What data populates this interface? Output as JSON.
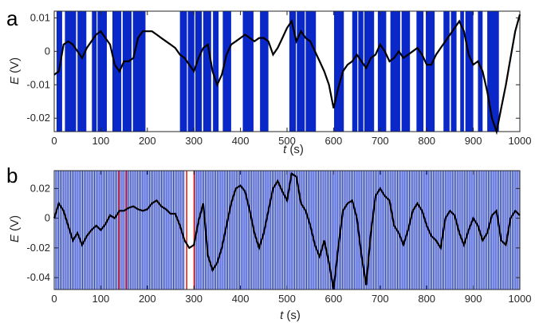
{
  "colors": {
    "band": "#0a28c8",
    "line": "#000000",
    "red": "#e8322a",
    "axis": "#262626"
  },
  "chart_data": [
    {
      "panel_label": "a",
      "type": "line",
      "xlabel_var": "t",
      "xlabel_unit": " (s)",
      "ylabel_var": "E",
      "ylabel_unit": " (V)",
      "xlim": [
        0,
        1000
      ],
      "ylim": [
        -0.024,
        0.012
      ],
      "xticks": [
        0,
        100,
        200,
        300,
        400,
        500,
        600,
        700,
        800,
        900,
        1000
      ],
      "xtick_labels": [
        "0",
        "100",
        "200",
        "300",
        "400",
        "500",
        "600",
        "700",
        "800",
        "900",
        "1000"
      ],
      "yticks": [
        0.01,
        0,
        -0.01,
        -0.02
      ],
      "ytick_labels": [
        "0.01",
        "0",
        "-0.01",
        "-0.02"
      ],
      "bands": [
        [
          5,
          17
        ],
        [
          23,
          47
        ],
        [
          50,
          69
        ],
        [
          81,
          91
        ],
        [
          93,
          113
        ],
        [
          125,
          144
        ],
        [
          147,
          166
        ],
        [
          169,
          196
        ],
        [
          270,
          285
        ],
        [
          287,
          301
        ],
        [
          303,
          317
        ],
        [
          320,
          337
        ],
        [
          341,
          353
        ],
        [
          362,
          380
        ],
        [
          405,
          428
        ],
        [
          442,
          460
        ],
        [
          505,
          519
        ],
        [
          521,
          538
        ],
        [
          540,
          562
        ],
        [
          601,
          622
        ],
        [
          640,
          651
        ],
        [
          653,
          664
        ],
        [
          666,
          687
        ],
        [
          695,
          713
        ],
        [
          722,
          743
        ],
        [
          746,
          764
        ],
        [
          778,
          793
        ],
        [
          798,
          817
        ],
        [
          836,
          849
        ],
        [
          852,
          864
        ],
        [
          872,
          880
        ],
        [
          883,
          900
        ],
        [
          910,
          920
        ],
        [
          930,
          955
        ]
      ],
      "red_bands": [],
      "x": [
        0,
        10,
        20,
        30,
        40,
        50,
        60,
        70,
        80,
        90,
        100,
        110,
        120,
        130,
        140,
        150,
        160,
        170,
        180,
        190,
        200,
        210,
        220,
        230,
        240,
        250,
        260,
        270,
        280,
        290,
        300,
        310,
        320,
        330,
        340,
        350,
        360,
        370,
        380,
        390,
        400,
        410,
        420,
        430,
        440,
        450,
        460,
        470,
        480,
        490,
        500,
        510,
        520,
        530,
        540,
        550,
        560,
        570,
        580,
        590,
        600,
        610,
        620,
        630,
        640,
        650,
        660,
        670,
        680,
        690,
        700,
        710,
        720,
        730,
        740,
        750,
        760,
        770,
        780,
        790,
        800,
        810,
        820,
        830,
        840,
        850,
        860,
        870,
        880,
        890,
        900,
        910,
        920,
        930,
        940,
        950,
        960,
        970,
        980,
        990,
        1000
      ],
      "y": [
        -0.007,
        -0.006,
        0.002,
        0.003,
        0.002,
        0.0,
        -0.002,
        0.001,
        0.003,
        0.005,
        0.006,
        0.004,
        0.002,
        -0.004,
        -0.006,
        -0.003,
        -0.003,
        -0.002,
        0.004,
        0.006,
        0.006,
        0.006,
        0.005,
        0.004,
        0.003,
        0.002,
        0.001,
        -0.001,
        -0.002,
        -0.004,
        -0.006,
        -0.002,
        0.001,
        0.002,
        -0.006,
        -0.01,
        -0.007,
        -0.001,
        0.002,
        0.003,
        0.004,
        0.005,
        0.004,
        0.003,
        0.004,
        0.004,
        0.003,
        -0.001,
        0.001,
        0.004,
        0.007,
        0.009,
        0.003,
        0.006,
        0.004,
        0.003,
        0.0,
        -0.003,
        -0.006,
        -0.01,
        -0.017,
        -0.011,
        -0.006,
        -0.004,
        -0.003,
        -0.001,
        -0.003,
        -0.005,
        -0.002,
        -0.001,
        0.002,
        0.0,
        -0.003,
        -0.002,
        0.0,
        -0.002,
        -0.001,
        0.0,
        0.001,
        -0.001,
        -0.004,
        -0.004,
        -0.001,
        0.001,
        0.003,
        0.005,
        0.007,
        0.009,
        0.006,
        -0.001,
        -0.004,
        -0.003,
        -0.006,
        -0.012,
        -0.02,
        -0.024,
        -0.017,
        -0.01,
        -0.002,
        0.006,
        0.011
      ]
    },
    {
      "panel_label": "b",
      "type": "line",
      "xlabel_var": "t",
      "xlabel_unit": " (s)",
      "ylabel_var": "E",
      "ylabel_unit": " (V)",
      "xlim": [
        0,
        1000
      ],
      "ylim": [
        -0.048,
        0.032
      ],
      "xticks": [
        0,
        100,
        200,
        300,
        400,
        500,
        600,
        700,
        800,
        900,
        1000
      ],
      "xtick_labels": [
        "0",
        "100",
        "200",
        "300",
        "400",
        "500",
        "600",
        "700",
        "800",
        "900",
        "1000"
      ],
      "yticks": [
        0.02,
        0,
        -0.02,
        -0.04
      ],
      "ytick_labels": [
        "0.02",
        "0",
        "-0.02",
        "-0.04"
      ],
      "stripe_ranges": [
        [
          0,
          280
        ],
        [
          302,
          1000
        ]
      ],
      "stripe_step": 3.2,
      "red_bands": [
        [
          138,
          141
        ],
        [
          153,
          156
        ],
        [
          283,
          286
        ],
        [
          299,
          302
        ]
      ],
      "x": [
        0,
        10,
        20,
        30,
        40,
        50,
        60,
        70,
        80,
        90,
        100,
        110,
        120,
        130,
        140,
        150,
        160,
        170,
        180,
        190,
        200,
        210,
        220,
        230,
        240,
        250,
        260,
        270,
        280,
        290,
        300,
        310,
        320,
        330,
        340,
        350,
        360,
        370,
        380,
        390,
        400,
        410,
        420,
        430,
        440,
        450,
        460,
        470,
        480,
        490,
        500,
        510,
        520,
        530,
        540,
        550,
        560,
        570,
        580,
        590,
        600,
        610,
        620,
        630,
        640,
        650,
        660,
        670,
        680,
        690,
        700,
        710,
        720,
        730,
        740,
        750,
        760,
        770,
        780,
        790,
        800,
        810,
        820,
        830,
        840,
        850,
        860,
        870,
        880,
        890,
        900,
        910,
        920,
        930,
        940,
        950,
        960,
        970,
        980,
        990,
        1000
      ],
      "y": [
        0.0,
        0.01,
        0.005,
        -0.005,
        -0.015,
        -0.01,
        -0.018,
        -0.012,
        -0.008,
        -0.005,
        -0.008,
        -0.004,
        0.002,
        0.0,
        0.005,
        0.005,
        0.007,
        0.008,
        0.006,
        0.005,
        0.006,
        0.01,
        0.012,
        0.008,
        0.006,
        0.003,
        0.003,
        -0.005,
        -0.015,
        -0.02,
        -0.018,
        -0.002,
        0.01,
        -0.025,
        -0.035,
        -0.03,
        -0.02,
        -0.005,
        0.01,
        0.02,
        0.022,
        0.018,
        0.005,
        -0.01,
        -0.02,
        -0.01,
        0.005,
        0.02,
        0.025,
        0.018,
        0.012,
        0.03,
        0.028,
        0.01,
        0.005,
        -0.005,
        -0.018,
        -0.026,
        -0.015,
        -0.03,
        -0.048,
        -0.02,
        0.005,
        0.01,
        0.012,
        0.0,
        -0.025,
        -0.045,
        -0.01,
        0.015,
        0.02,
        0.015,
        0.012,
        -0.005,
        -0.01,
        -0.018,
        -0.008,
        0.005,
        0.01,
        0.005,
        -0.005,
        -0.012,
        -0.015,
        -0.02,
        0.0,
        0.005,
        0.002,
        -0.01,
        -0.018,
        -0.008,
        0.0,
        -0.005,
        -0.015,
        -0.01,
        0.002,
        0.005,
        -0.015,
        -0.018,
        0.0,
        0.005,
        0.002
      ]
    }
  ]
}
